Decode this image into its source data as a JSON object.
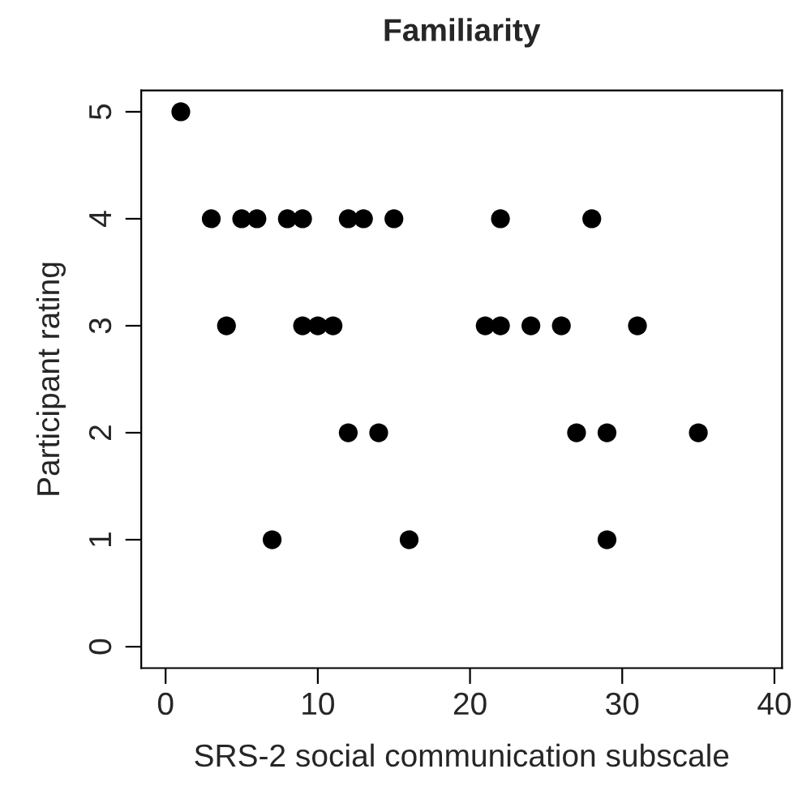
{
  "chart_data": {
    "type": "scatter",
    "title": "Familiarity",
    "xlabel": "SRS-2 social communication subscale",
    "ylabel": "Participant rating",
    "x": [
      1,
      3,
      5,
      6,
      8,
      9,
      12,
      13,
      15,
      22,
      28,
      4,
      9,
      10,
      11,
      21,
      22,
      24,
      26,
      31,
      12,
      14,
      27,
      29,
      35,
      7,
      16,
      29
    ],
    "series": [
      {
        "color": "#000000",
        "values": [
          5,
          4,
          4,
          4,
          4,
          4,
          4,
          4,
          4,
          4,
          4,
          3,
          3,
          3,
          3,
          3,
          3,
          3,
          3,
          3,
          2,
          2,
          2,
          2,
          2,
          1,
          1,
          1
        ]
      }
    ],
    "xlim": [
      -1.6,
      40.5
    ],
    "ylim": [
      -0.2,
      5.2
    ],
    "xticks": [
      0,
      10,
      20,
      30,
      40
    ],
    "yticks": [
      0,
      1,
      2,
      3,
      4,
      5
    ],
    "grid": false,
    "legend": false,
    "marker": "circle"
  }
}
